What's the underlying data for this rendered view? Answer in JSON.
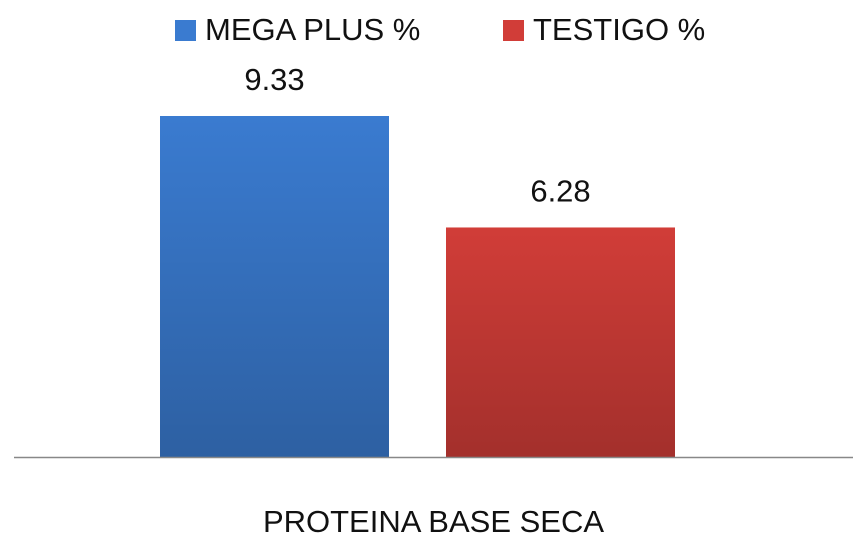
{
  "chart_data": {
    "type": "bar",
    "categories": [
      "PROTEINA BASE SECA"
    ],
    "series": [
      {
        "name": "MEGA PLUS %",
        "color": "#3a7bd0",
        "values": [
          9.33
        ]
      },
      {
        "name": "TESTIGO %",
        "color": "#d13d38",
        "values": [
          6.28
        ]
      }
    ],
    "legend": "top"
  }
}
